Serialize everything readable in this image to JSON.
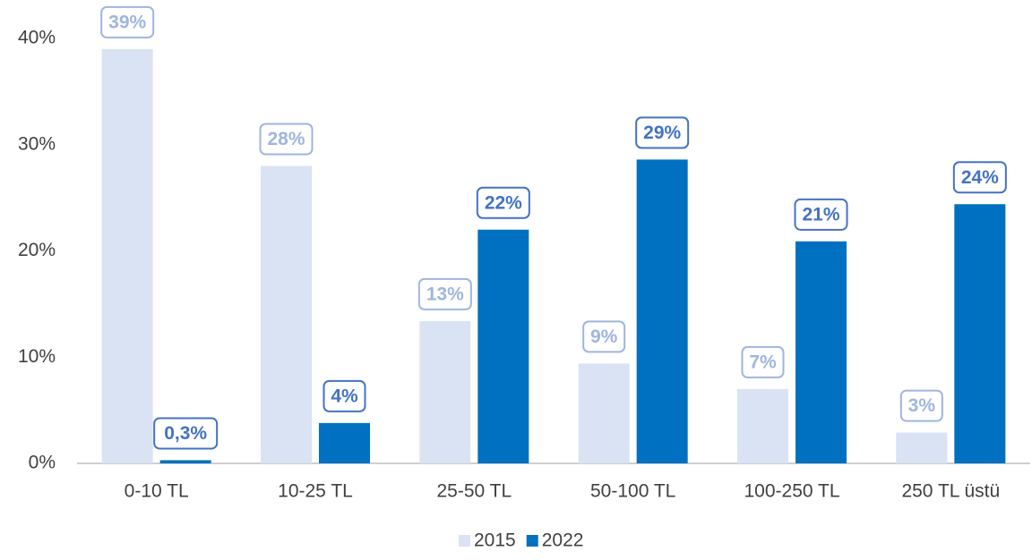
{
  "chart_data": {
    "type": "bar",
    "categories": [
      "0-10 TL",
      "10-25 TL",
      "25-50 TL",
      "50-100 TL",
      "100-250 TL",
      "250 TL üstü"
    ],
    "series": [
      {
        "name": "2015",
        "color": "#dae3f3",
        "label_color": "#9fb5df",
        "values": [
          39,
          28,
          13.4,
          9.4,
          7,
          2.9
        ],
        "value_labels": [
          "39%",
          "28%",
          "13%",
          "9%",
          "7%",
          "3%"
        ]
      },
      {
        "name": "2022",
        "color": "#0070c0",
        "label_color": "#4472c4",
        "values": [
          0.3,
          3.8,
          22,
          28.6,
          20.9,
          24.4
        ],
        "value_labels": [
          "0,3%",
          "4%",
          "22%",
          "29%",
          "21%",
          "24%"
        ]
      }
    ],
    "ylim": [
      0,
      40
    ],
    "yticks": [
      {
        "value": 0,
        "label": "0%"
      },
      {
        "value": 10,
        "label": "10%"
      },
      {
        "value": 20,
        "label": "20%"
      },
      {
        "value": 30,
        "label": "30%"
      },
      {
        "value": 40,
        "label": "40%"
      }
    ],
    "grid": false,
    "legend": "bottom"
  }
}
